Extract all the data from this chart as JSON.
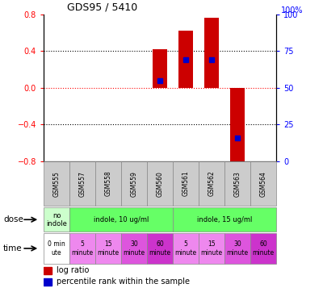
{
  "title": "GDS95 / 5410",
  "samples": [
    "GSM555",
    "GSM557",
    "GSM558",
    "GSM559",
    "GSM560",
    "GSM561",
    "GSM562",
    "GSM563",
    "GSM564"
  ],
  "log_ratio": [
    0.0,
    0.0,
    0.0,
    0.0,
    0.42,
    0.62,
    0.76,
    -0.82,
    0.0
  ],
  "percentile": [
    null,
    null,
    null,
    null,
    0.55,
    0.69,
    0.69,
    0.16,
    null
  ],
  "ylim": [
    -0.8,
    0.8
  ],
  "y2lim": [
    0,
    100
  ],
  "yticks": [
    -0.8,
    -0.4,
    0.0,
    0.4,
    0.8
  ],
  "y2ticks": [
    0,
    25,
    50,
    75,
    100
  ],
  "bar_color": "#cc0000",
  "percentile_color": "#0000cc",
  "hline_dotted_color": "#000000",
  "hline_zero_color": "#ff0000",
  "dose_row": [
    {
      "label": "no\nindole",
      "color": "#ccffcc",
      "span": [
        0,
        1
      ]
    },
    {
      "label": "indole, 10 ug/ml",
      "color": "#66ff66",
      "span": [
        1,
        5
      ]
    },
    {
      "label": "indole, 15 ug/ml",
      "color": "#66ff66",
      "span": [
        5,
        9
      ]
    }
  ],
  "time_row": [
    {
      "label": "0 min\nute",
      "color": "#ffffff",
      "span": [
        0,
        1
      ]
    },
    {
      "label": "5\nminute",
      "color": "#ee88ee",
      "span": [
        1,
        2
      ]
    },
    {
      "label": "15\nminute",
      "color": "#ee88ee",
      "span": [
        2,
        3
      ]
    },
    {
      "label": "30\nminute",
      "color": "#dd55dd",
      "span": [
        3,
        4
      ]
    },
    {
      "label": "60\nminute",
      "color": "#cc33cc",
      "span": [
        4,
        5
      ]
    },
    {
      "label": "5\nminute",
      "color": "#ee88ee",
      "span": [
        5,
        6
      ]
    },
    {
      "label": "15\nminute",
      "color": "#ee88ee",
      "span": [
        6,
        7
      ]
    },
    {
      "label": "30\nminute",
      "color": "#dd55dd",
      "span": [
        7,
        8
      ]
    },
    {
      "label": "60\nminute",
      "color": "#cc33cc",
      "span": [
        8,
        9
      ]
    }
  ],
  "bar_width": 0.55,
  "figsize": [
    4.0,
    3.57
  ],
  "dpi": 100
}
